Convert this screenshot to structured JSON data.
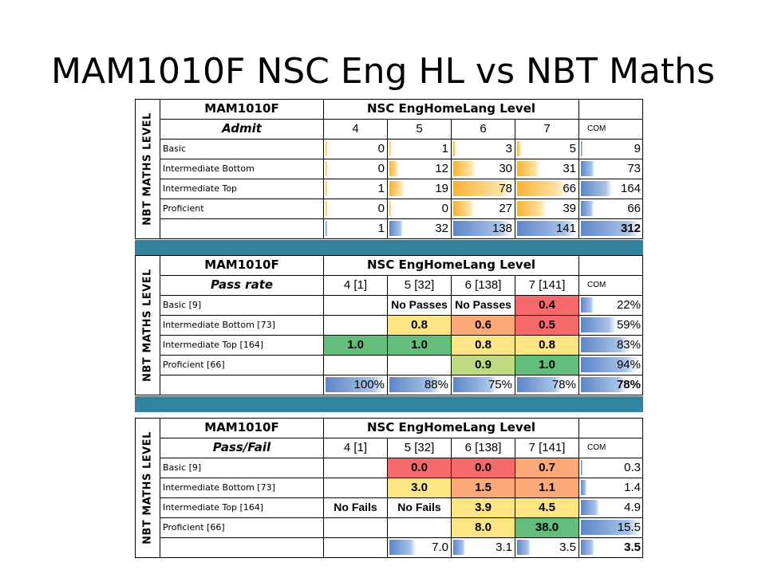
{
  "title": "MAM1010F NSC Eng HL vs NBT Maths",
  "vertical_label": "NBT MATHS LEVEL",
  "colors": {
    "separator": "#31849b",
    "red": "#f8696b",
    "orange": "#fbaa77",
    "yellow": "#fee583",
    "lightgreen": "#bfdb7f",
    "green": "#63be7b"
  },
  "tables": [
    {
      "course": "MAM1010F",
      "group_header": "NSC EngHomeLang Level",
      "row_header": "Admit",
      "columns": [
        "4",
        "5",
        "6",
        "7",
        "COM"
      ],
      "rows": [
        {
          "label": "Basic",
          "values": [
            "0",
            "1",
            "3",
            "5",
            "9"
          ]
        },
        {
          "label": "Intermediate Bottom",
          "values": [
            "0",
            "12",
            "30",
            "31",
            "73"
          ]
        },
        {
          "label": "Intermediate Top",
          "values": [
            "1",
            "19",
            "78",
            "66",
            "164"
          ]
        },
        {
          "label": "Proficient",
          "values": [
            "0",
            "0",
            "27",
            "39",
            "66"
          ]
        },
        {
          "label": "",
          "values": [
            "1",
            "32",
            "138",
            "141",
            "312"
          ]
        }
      ]
    },
    {
      "course": "MAM1010F",
      "group_header": "NSC EngHomeLang Level",
      "row_header": "Pass rate",
      "columns": [
        "4 [1]",
        "5 [32]",
        "6 [138]",
        "7 [141]",
        "COM"
      ],
      "rows": [
        {
          "label": "Basic [9]",
          "values": [
            "",
            "No Passes",
            "No Passes",
            "0.4",
            "22%"
          ]
        },
        {
          "label": "Intermediate Bottom [73]",
          "values": [
            "",
            "0.8",
            "0.6",
            "0.5",
            "59%"
          ]
        },
        {
          "label": "Intermediate Top [164]",
          "values": [
            "1.0",
            "1.0",
            "0.8",
            "0.8",
            "83%"
          ]
        },
        {
          "label": "Proficient [66]",
          "values": [
            "",
            "",
            "0.9",
            "1.0",
            "94%"
          ]
        },
        {
          "label": "",
          "values": [
            "100%",
            "88%",
            "75%",
            "78%",
            "78%"
          ]
        }
      ]
    },
    {
      "course": "MAM1010F",
      "group_header": "NSC EngHomeLang Level",
      "row_header": "Pass/Fail",
      "columns": [
        "4 [1]",
        "5 [32]",
        "6 [138]",
        "7 [141]",
        "COM"
      ],
      "rows": [
        {
          "label": "Basic [9]",
          "values": [
            "",
            "0.0",
            "0.0",
            "0.7",
            "0.3"
          ]
        },
        {
          "label": "Intermediate Bottom [73]",
          "values": [
            "",
            "3.0",
            "1.5",
            "1.1",
            "1.4"
          ]
        },
        {
          "label": "Intermediate Top [164]",
          "values": [
            "No Fails",
            "No Fails",
            "3.9",
            "4.5",
            "4.9"
          ]
        },
        {
          "label": "Proficient [66]",
          "values": [
            "",
            "",
            "8.0",
            "38.0",
            "15.5"
          ]
        },
        {
          "label": "",
          "values": [
            "",
            "7.0",
            "3.1",
            "3.5",
            "3.5"
          ]
        }
      ]
    }
  ]
}
